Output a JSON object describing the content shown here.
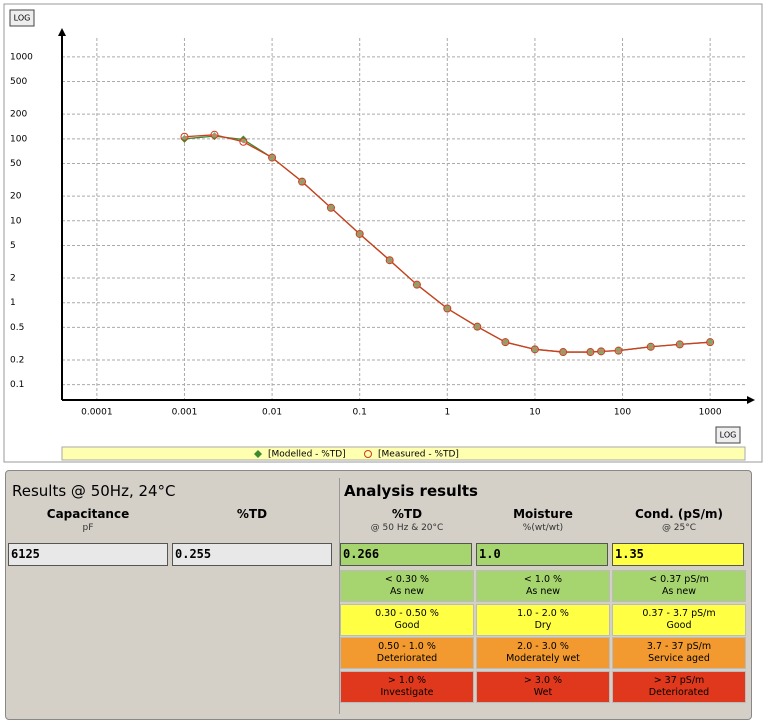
{
  "chart_data": {
    "type": "line",
    "log_x": true,
    "log_y": true,
    "grid": true,
    "xlim": [
      4e-05,
      2500
    ],
    "ylim": [
      0.065,
      1700
    ],
    "xticks": [
      0.0001,
      0.001,
      0.01,
      0.1,
      1,
      10,
      100,
      1000
    ],
    "yticks": [
      0.1,
      0.2,
      0.5,
      1,
      2,
      5,
      10,
      20,
      50,
      100,
      200,
      500,
      1000
    ],
    "x_scale_button": "LOG",
    "y_scale_button": "LOG",
    "x": [
      0.001,
      0.0022,
      0.0047,
      0.01,
      0.022,
      0.047,
      0.1,
      0.22,
      0.45,
      1,
      2.2,
      4.6,
      10,
      21,
      43,
      57,
      90,
      210,
      450,
      1000
    ],
    "series": [
      {
        "name": "[Modelled - %TD]",
        "color": "#3c8a2e",
        "marker": "diamond",
        "values": [
          100,
          108,
          98,
          59,
          30,
          14.4,
          6.9,
          3.3,
          1.66,
          0.85,
          0.51,
          0.33,
          0.27,
          0.25,
          0.25,
          0.255,
          0.26,
          0.29,
          0.31,
          0.33
        ]
      },
      {
        "name": "[Measured - %TD]",
        "color": "#d23b1f",
        "marker": "circle",
        "values": [
          106,
          112,
          92,
          59,
          30,
          14.4,
          6.9,
          3.3,
          1.66,
          0.85,
          0.51,
          0.33,
          0.27,
          0.25,
          0.25,
          0.255,
          0.26,
          0.29,
          0.31,
          0.33
        ]
      }
    ]
  },
  "results": {
    "title": "Results @ 50Hz, 24°C",
    "fields": [
      {
        "title": "Capacitance",
        "unit": "pF",
        "value": "6125"
      },
      {
        "title": "%TD",
        "value": "0.255"
      }
    ]
  },
  "analysis": {
    "title": "Analysis results",
    "columns": [
      {
        "title": "%TD",
        "subtitle": "@ 50 Hz & 20°C",
        "value": "0.266",
        "color": "#a6d46e"
      },
      {
        "title": "Moisture",
        "subtitle": "%(wt/wt)",
        "value": "1.0",
        "color": "#a6d46e"
      },
      {
        "title": "Cond. (pS/m)",
        "subtitle": "@ 25°C",
        "value": "1.35",
        "color": "#ffff44"
      }
    ],
    "rows": [
      {
        "color": "#a6d46e",
        "cells": [
          [
            "< 0.30 %",
            "As new"
          ],
          [
            "< 1.0 %",
            "As new"
          ],
          [
            "< 0.37 pS/m",
            "As new"
          ]
        ]
      },
      {
        "color": "#ffff44",
        "cells": [
          [
            "0.30 - 0.50 %",
            "Good"
          ],
          [
            "1.0 - 2.0 %",
            "Dry"
          ],
          [
            "0.37 - 3.7 pS/m",
            "Good"
          ]
        ]
      },
      {
        "color": "#f29a30",
        "cells": [
          [
            "0.50 - 1.0 %",
            "Deteriorated"
          ],
          [
            "2.0 - 3.0 %",
            "Moderately wet"
          ],
          [
            "3.7 - 37 pS/m",
            "Service aged"
          ]
        ]
      },
      {
        "color": "#e0381c",
        "cells": [
          [
            "> 1.0 %",
            "Investigate"
          ],
          [
            "> 3.0 %",
            "Wet"
          ],
          [
            "> 37 pS/m",
            "Deteriorated"
          ]
        ]
      }
    ]
  }
}
